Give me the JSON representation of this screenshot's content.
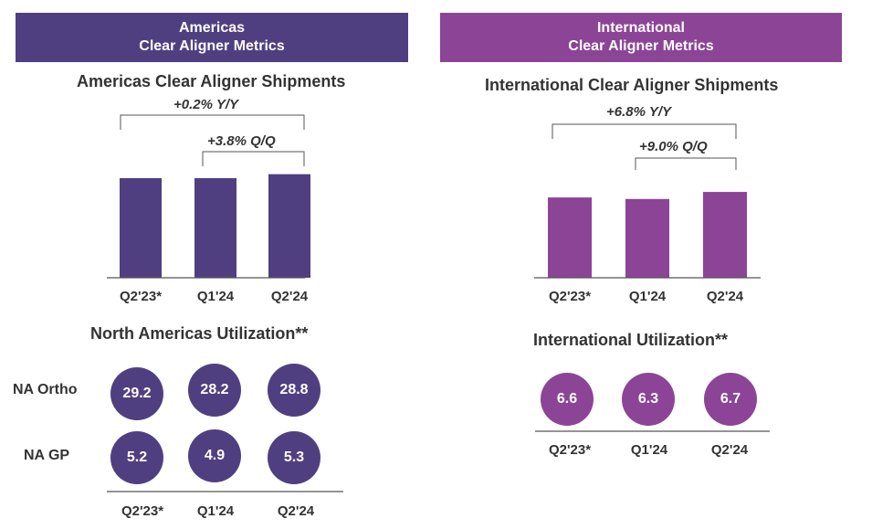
{
  "colors": {
    "americas": "#503f80",
    "international": "#8c4497",
    "axis": "#555555",
    "bracket": "#555555"
  },
  "americas": {
    "banner": {
      "line1": "Americas",
      "line2": "Clear Aligner Metrics"
    },
    "shipments_title": "Americas Clear Aligner Shipments",
    "yoy_label": "+0.2% Y/Y",
    "qoq_label": "+3.8% Q/Q",
    "utilization_title": "North Americas Utilization**",
    "rows": [
      {
        "label": "NA Ortho",
        "values": [
          "29.2",
          "28.2",
          "28.8"
        ]
      },
      {
        "label": "NA GP",
        "values": [
          "5.2",
          "4.9",
          "5.3"
        ]
      }
    ],
    "util_ticks": [
      "Q2'23*",
      "Q1'24",
      "Q2'24"
    ]
  },
  "international": {
    "banner": {
      "line1": "International",
      "line2": "Clear Aligner Metrics"
    },
    "shipments_title": "International Clear Aligner Shipments",
    "yoy_label": "+6.8% Y/Y",
    "qoq_label": "+9.0% Q/Q",
    "utilization_title": "International Utilization**",
    "values": [
      "6.6",
      "6.3",
      "6.7"
    ],
    "util_ticks": [
      "Q2'23*",
      "Q1'24",
      "Q2'24"
    ]
  },
  "chart_data": [
    {
      "type": "bar",
      "title": "Americas Clear Aligner Shipments",
      "categories": [
        "Q2'23*",
        "Q1'24",
        "Q2'24"
      ],
      "values": [
        1.0,
        1.0,
        1.04
      ],
      "annotations": [
        "+0.2% Y/Y",
        "+3.8% Q/Q"
      ]
    },
    {
      "type": "bar",
      "title": "International Clear Aligner Shipments",
      "categories": [
        "Q2'23*",
        "Q1'24",
        "Q2'24"
      ],
      "values": [
        0.945,
        0.927,
        1.01
      ],
      "annotations": [
        "+6.8% Y/Y",
        "+9.0% Q/Q"
      ]
    }
  ]
}
